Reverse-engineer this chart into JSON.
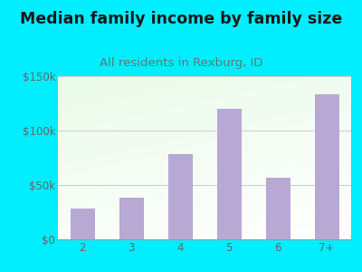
{
  "title": "Median family income by family size",
  "subtitle": "All residents in Rexburg, ID",
  "categories": [
    "2",
    "3",
    "4",
    "5",
    "6",
    "7+"
  ],
  "values": [
    28000,
    38000,
    78000,
    120000,
    57000,
    133000
  ],
  "bar_color": "#b8a8d4",
  "background_outer": "#00eeff",
  "title_color": "#1a1a1a",
  "subtitle_color": "#5a7a7a",
  "tick_color": "#666666",
  "grid_color": "#cccccc",
  "ylim": [
    0,
    150000
  ],
  "yticks": [
    0,
    50000,
    100000,
    150000
  ],
  "ytick_labels": [
    "$0",
    "$50k",
    "$100k",
    "$150k"
  ],
  "title_fontsize": 12.5,
  "subtitle_fontsize": 9.5,
  "tick_fontsize": 8.5,
  "bar_width": 0.5
}
